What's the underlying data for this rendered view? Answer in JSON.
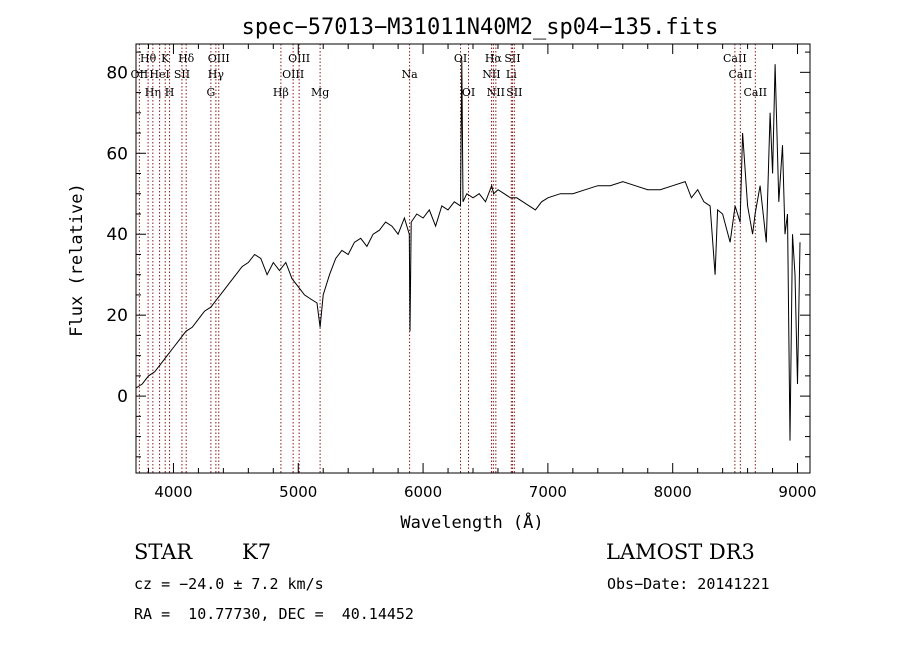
{
  "chart_data": {
    "type": "line",
    "title": "spec−57013−M31011N40M2_sp04−135.fits",
    "xlabel": "Wavelength (Å)",
    "ylabel": "Flux (relative)",
    "xlim": [
      3700,
      9100
    ],
    "ylim": [
      -19,
      87
    ],
    "xticks": [
      4000,
      5000,
      6000,
      7000,
      8000,
      9000
    ],
    "yticks": [
      0,
      20,
      40,
      60,
      80
    ],
    "series": [
      {
        "name": "flux",
        "x": [
          3700,
          3750,
          3800,
          3850,
          3900,
          3950,
          4000,
          4050,
          4100,
          4150,
          4200,
          4250,
          4300,
          4350,
          4400,
          4450,
          4500,
          4550,
          4600,
          4650,
          4700,
          4750,
          4800,
          4850,
          4900,
          4950,
          5000,
          5050,
          5100,
          5150,
          5175,
          5200,
          5250,
          5300,
          5350,
          5400,
          5450,
          5500,
          5550,
          5600,
          5650,
          5700,
          5750,
          5800,
          5850,
          5890,
          5895,
          5905,
          5950,
          6000,
          6050,
          6100,
          6150,
          6200,
          6250,
          6300,
          6310,
          6320,
          6350,
          6400,
          6450,
          6500,
          6550,
          6565,
          6600,
          6650,
          6700,
          6750,
          6800,
          6850,
          6900,
          6950,
          7000,
          7100,
          7200,
          7300,
          7400,
          7500,
          7600,
          7700,
          7800,
          7900,
          8000,
          8100,
          8150,
          8200,
          8250,
          8300,
          8340,
          8360,
          8400,
          8460,
          8500,
          8540,
          8560,
          8600,
          8640,
          8660,
          8700,
          8750,
          8780,
          8800,
          8820,
          8850,
          8880,
          8900,
          8920,
          8940,
          8960,
          8980,
          9000,
          9020
        ],
        "values": [
          2,
          3,
          5,
          6,
          8,
          10,
          12,
          14,
          16,
          17,
          19,
          21,
          22,
          24,
          26,
          28,
          30,
          32,
          33,
          35,
          34,
          30,
          33,
          31,
          33,
          29,
          27,
          25,
          24,
          23,
          17,
          25,
          30,
          34,
          36,
          35,
          38,
          39,
          37,
          40,
          41,
          43,
          42,
          40,
          44,
          40,
          16,
          43,
          45,
          44,
          46,
          42,
          47,
          46,
          48,
          47,
          83,
          48,
          50,
          49,
          50,
          48,
          52,
          50,
          51,
          50,
          49,
          49,
          48,
          47,
          46,
          48,
          49,
          50,
          50,
          51,
          52,
          52,
          53,
          52,
          51,
          51,
          52,
          53,
          49,
          51,
          48,
          47,
          30,
          46,
          45,
          38,
          47,
          43,
          65,
          47,
          40,
          45,
          52,
          38,
          70,
          55,
          82,
          48,
          62,
          40,
          45,
          -11,
          40,
          30,
          3,
          38
        ]
      }
    ],
    "line_colors": {
      "spectrum": "#000000",
      "marker": "#8b1a1a"
    },
    "lines": [
      {
        "wl": 3727,
        "label": "OII",
        "row": 2
      },
      {
        "wl": 3797,
        "label": "Hθ",
        "row": 1
      },
      {
        "wl": 3835,
        "label": "Hη",
        "row": 3
      },
      {
        "wl": 3889,
        "label": "HeI",
        "row": 2
      },
      {
        "wl": 3934,
        "label": "K",
        "row": 1
      },
      {
        "wl": 3969,
        "label": "H",
        "row": 3
      },
      {
        "wl": 4068,
        "label": "SII",
        "row": 2
      },
      {
        "wl": 4102,
        "label": "Hδ",
        "row": 1
      },
      {
        "wl": 4300,
        "label": "G",
        "row": 3
      },
      {
        "wl": 4340,
        "label": "Hγ",
        "row": 2
      },
      {
        "wl": 4363,
        "label": "OIII",
        "row": 1
      },
      {
        "wl": 4861,
        "label": "Hβ",
        "row": 3
      },
      {
        "wl": 4959,
        "label": "OIII",
        "row": 2
      },
      {
        "wl": 5007,
        "label": "OIII",
        "row": 1
      },
      {
        "wl": 5175,
        "label": "Mg",
        "row": 3
      },
      {
        "wl": 5892,
        "label": "Na",
        "row": 2
      },
      {
        "wl": 6300,
        "label": "OI",
        "row": 1
      },
      {
        "wl": 6364,
        "label": "OI",
        "row": 3
      },
      {
        "wl": 6548,
        "label": "NII",
        "row": 2
      },
      {
        "wl": 6563,
        "label": "Hα",
        "row": 1
      },
      {
        "wl": 6583,
        "label": "NII",
        "row": 3
      },
      {
        "wl": 6707,
        "label": "Li",
        "row": 2
      },
      {
        "wl": 6716,
        "label": "SII",
        "row": 1
      },
      {
        "wl": 6731,
        "label": "SII",
        "row": 3
      },
      {
        "wl": 8498,
        "label": "CaII",
        "row": 1
      },
      {
        "wl": 8542,
        "label": "CaII",
        "row": 2
      },
      {
        "wl": 8662,
        "label": "CaII",
        "row": 3
      }
    ]
  },
  "info": {
    "class": "STAR",
    "subclass": "K7",
    "survey": "LAMOST DR3",
    "cz": "cz = −24.0 ± 7.2 km/s",
    "obs_date": "Obs−Date: 20141221",
    "radec": "RA =  10.77730, DEC =  40.14452"
  }
}
